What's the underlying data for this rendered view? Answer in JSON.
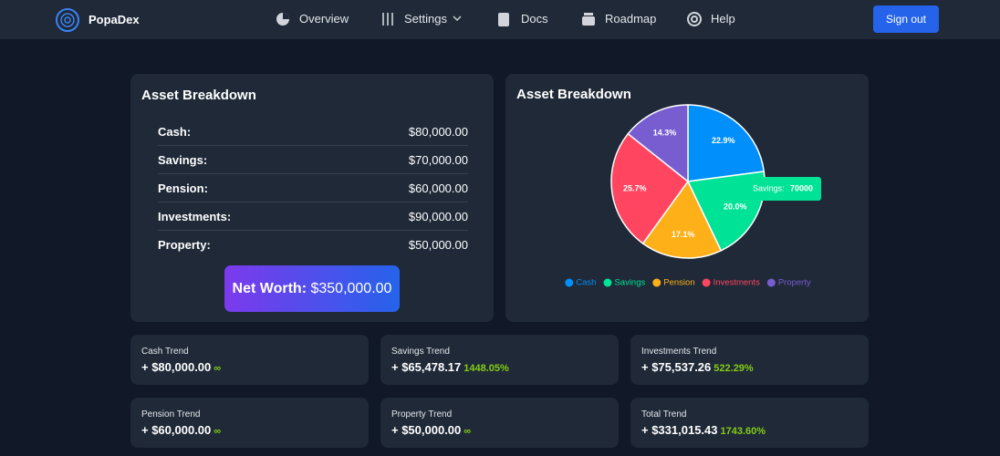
{
  "nav": {
    "brand": "PopaDex",
    "links": [
      "Overview",
      "Settings",
      "Docs",
      "Roadmap",
      "Help"
    ],
    "sign_out": "Sign out"
  },
  "assets": {
    "title": "Asset Breakdown",
    "rows": [
      [
        "Cash:",
        "$80,000.00"
      ],
      [
        "Savings:",
        "$70,000.00"
      ],
      [
        "Pension:",
        "$60,000.00"
      ],
      [
        "Investments:",
        "$90,000.00"
      ],
      [
        "Property:",
        "$50,000.00"
      ]
    ],
    "net_worth_label": "Net Worth:",
    "net_worth_value": "$350,000.00"
  },
  "chart_data": {
    "type": "pie",
    "title": "Asset Breakdown",
    "categories": [
      "Cash",
      "Savings",
      "Pension",
      "Investments",
      "Property"
    ],
    "values": [
      22.9,
      20.0,
      17.1,
      25.7,
      14.3
    ],
    "value_labels": [
      "22.9%",
      "20.0%",
      "17.1%",
      "25.7%",
      "14.3%"
    ],
    "colors": [
      "#008FFB",
      "#00E396",
      "#FEB019",
      "#FF4560",
      "#775DD0"
    ],
    "legend": "bottom",
    "tooltip": {
      "label": "Savings:",
      "value": 70000
    }
  },
  "trends": [
    {
      "title": "Cash Trend",
      "value": "+ $80,000.00",
      "change": "∞"
    },
    {
      "title": "Savings Trend",
      "value": "+ $65,478.17",
      "change": "1448.05%"
    },
    {
      "title": "Investments Trend",
      "value": "+ $75,537.26",
      "change": "522.29%"
    },
    {
      "title": "Pension Trend",
      "value": "+ $60,000.00",
      "change": "∞"
    },
    {
      "title": "Property Trend",
      "value": "+ $50,000.00",
      "change": "∞"
    },
    {
      "title": "Total Trend",
      "value": "+ $331,015.43",
      "change": "1743.60%"
    }
  ]
}
